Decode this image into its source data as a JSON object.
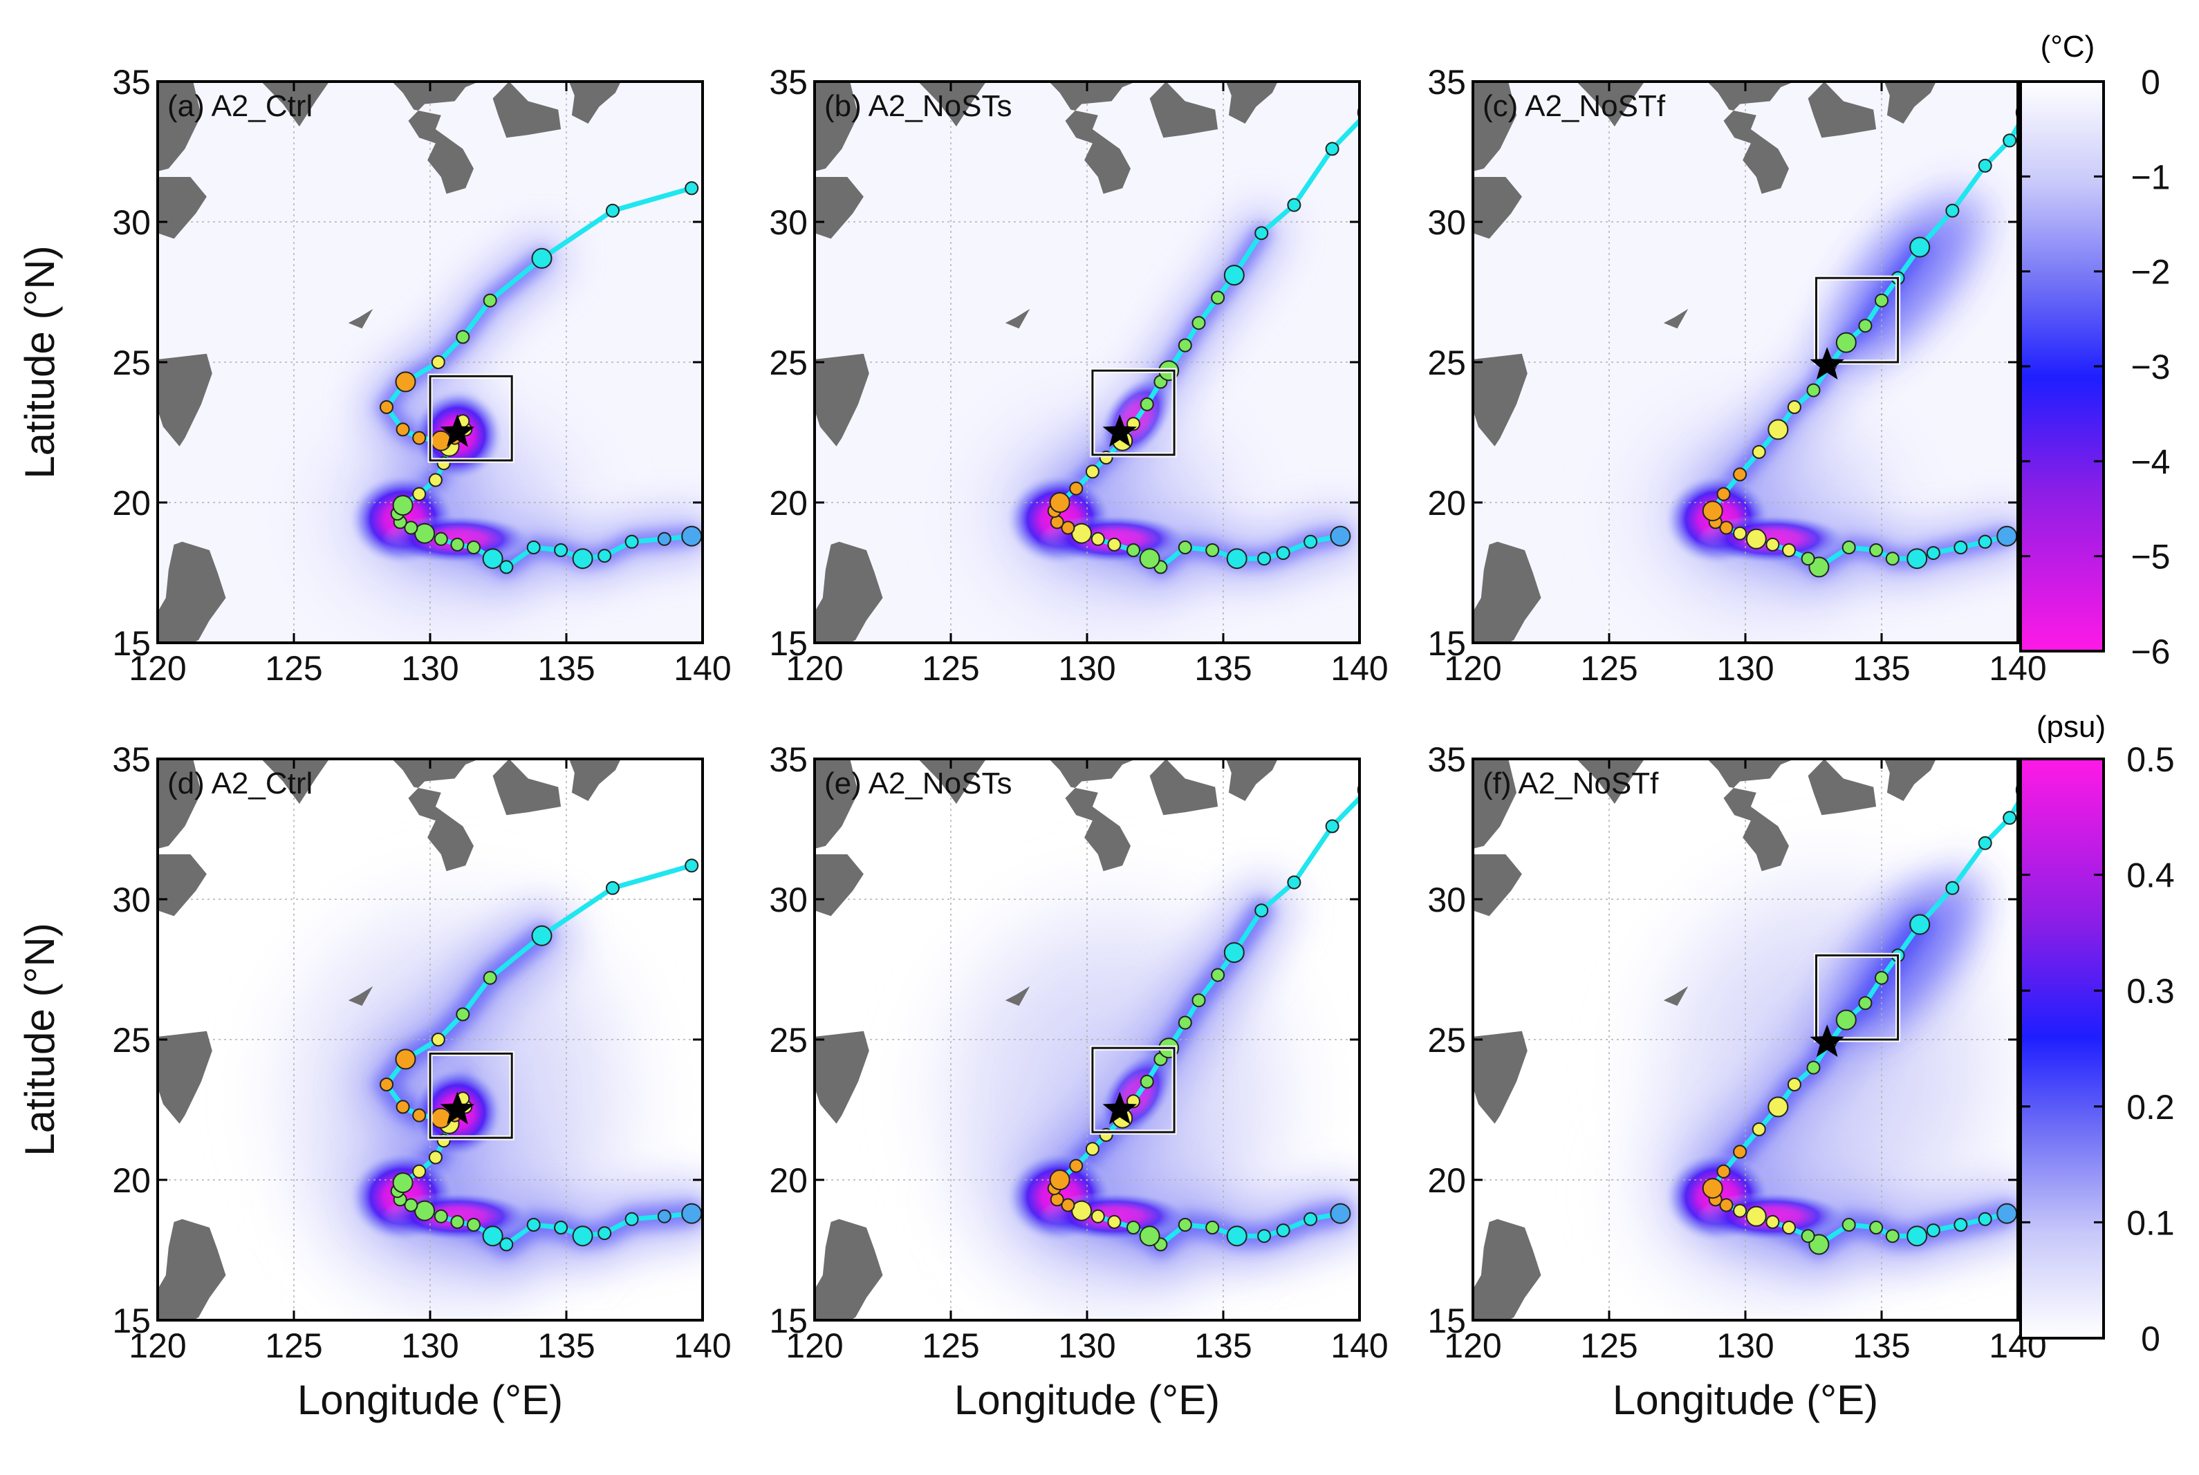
{
  "figure": {
    "xlabel": "Longitude (°E)",
    "ylabel": "Latitude (°N)",
    "xticks": [
      "120",
      "125",
      "130",
      "135",
      "140"
    ],
    "yticks": [
      "15",
      "20",
      "25",
      "30",
      "35"
    ],
    "xlim": [
      120,
      140
    ],
    "ylim": [
      15,
      35
    ],
    "grid": true
  },
  "colorbars": [
    {
      "unit": "(°C)",
      "ticks": [
        "0",
        "−1",
        "−2",
        "−3",
        "−4",
        "−5",
        "−6"
      ],
      "range": [
        0,
        -6
      ],
      "colors": [
        "#ffffff",
        "#c8c8fa",
        "#6f6ff6",
        "#1e1eff",
        "#8c1ee6",
        "#ff19e6"
      ]
    },
    {
      "unit": "(psu)",
      "ticks": [
        "0.5",
        "0.4",
        "0.3",
        "0.2",
        "0.1",
        "0"
      ],
      "range": [
        0.5,
        0
      ],
      "colors": [
        "#ff19e6",
        "#8c1ee6",
        "#1e1eff",
        "#6f6ff6",
        "#c8c8fa",
        "#ffffff"
      ]
    }
  ],
  "panels": [
    {
      "label": "(a) A2_Ctrl",
      "variable": "SST anomaly",
      "track": "ctrl"
    },
    {
      "label": "(b) A2_NoSTs",
      "variable": "SST anomaly",
      "track": "nosts"
    },
    {
      "label": "(c) A2_NoSTf",
      "variable": "SST anomaly",
      "track": "nostf"
    },
    {
      "label": "(d) A2_Ctrl",
      "variable": "SSS anomaly",
      "track": "ctrl"
    },
    {
      "label": "(e) A2_NoSTs",
      "variable": "SSS anomaly",
      "track": "nosts"
    },
    {
      "label": "(f) A2_NoSTf",
      "variable": "SSS anomaly",
      "track": "nostf"
    }
  ],
  "chart_data": {
    "type": "scatter",
    "xlim": [
      120,
      140
    ],
    "ylim": [
      15,
      35
    ],
    "tracks": {
      "ctrl": [
        [
          139.6,
          18.8
        ],
        [
          138.6,
          18.7
        ],
        [
          137.4,
          18.6
        ],
        [
          136.4,
          18.1
        ],
        [
          135.6,
          18.0
        ],
        [
          134.8,
          18.3
        ],
        [
          133.8,
          18.4
        ],
        [
          132.8,
          17.7
        ],
        [
          132.3,
          18.0
        ],
        [
          131.6,
          18.4
        ],
        [
          131.0,
          18.5
        ],
        [
          130.4,
          18.7
        ],
        [
          129.8,
          18.9
        ],
        [
          129.3,
          19.1
        ],
        [
          128.9,
          19.3
        ],
        [
          128.8,
          19.6
        ],
        [
          129.0,
          19.9
        ],
        [
          129.6,
          20.3
        ],
        [
          130.2,
          20.8
        ],
        [
          130.5,
          21.4
        ],
        [
          130.7,
          22.0
        ],
        [
          131.3,
          22.6
        ],
        [
          131.2,
          22.9
        ],
        [
          130.9,
          22.3
        ],
        [
          130.4,
          22.2
        ],
        [
          129.6,
          22.3
        ],
        [
          129.0,
          22.6
        ],
        [
          128.4,
          23.4
        ],
        [
          129.1,
          24.3
        ],
        [
          130.3,
          25.0
        ],
        [
          131.2,
          25.9
        ],
        [
          132.2,
          27.2
        ],
        [
          134.1,
          28.7
        ],
        [
          136.7,
          30.4
        ],
        [
          139.6,
          31.2
        ]
      ],
      "nosts": [
        [
          139.3,
          18.8
        ],
        [
          138.2,
          18.6
        ],
        [
          137.2,
          18.2
        ],
        [
          136.5,
          18.0
        ],
        [
          135.5,
          18.0
        ],
        [
          134.6,
          18.3
        ],
        [
          133.6,
          18.4
        ],
        [
          132.7,
          17.7
        ],
        [
          132.3,
          18.0
        ],
        [
          131.7,
          18.3
        ],
        [
          131.0,
          18.5
        ],
        [
          130.4,
          18.7
        ],
        [
          129.8,
          18.9
        ],
        [
          129.3,
          19.1
        ],
        [
          128.9,
          19.3
        ],
        [
          128.8,
          19.7
        ],
        [
          129.0,
          20.0
        ],
        [
          129.6,
          20.5
        ],
        [
          130.2,
          21.1
        ],
        [
          130.7,
          21.6
        ],
        [
          131.3,
          22.2
        ],
        [
          131.7,
          22.8
        ],
        [
          132.2,
          23.5
        ],
        [
          132.7,
          24.3
        ],
        [
          133.0,
          24.7
        ],
        [
          133.6,
          25.6
        ],
        [
          134.1,
          26.4
        ],
        [
          134.8,
          27.3
        ],
        [
          135.4,
          28.1
        ],
        [
          136.4,
          29.6
        ],
        [
          137.6,
          30.6
        ],
        [
          139.0,
          32.6
        ],
        [
          140.3,
          33.9
        ]
      ],
      "nostf": [
        [
          139.6,
          18.8
        ],
        [
          138.8,
          18.6
        ],
        [
          137.9,
          18.4
        ],
        [
          136.9,
          18.2
        ],
        [
          136.3,
          18.0
        ],
        [
          135.4,
          18.0
        ],
        [
          134.8,
          18.3
        ],
        [
          133.8,
          18.4
        ],
        [
          132.7,
          17.7
        ],
        [
          132.3,
          18.0
        ],
        [
          131.6,
          18.3
        ],
        [
          131.0,
          18.5
        ],
        [
          130.4,
          18.7
        ],
        [
          129.8,
          18.9
        ],
        [
          129.3,
          19.1
        ],
        [
          128.9,
          19.3
        ],
        [
          128.8,
          19.7
        ],
        [
          129.2,
          20.3
        ],
        [
          129.8,
          21.0
        ],
        [
          130.5,
          21.8
        ],
        [
          131.2,
          22.6
        ],
        [
          131.8,
          23.4
        ],
        [
          132.5,
          24.0
        ],
        [
          133.1,
          24.9
        ],
        [
          133.7,
          25.7
        ],
        [
          134.4,
          26.3
        ],
        [
          135.0,
          27.2
        ],
        [
          135.6,
          28.0
        ],
        [
          136.4,
          29.1
        ],
        [
          137.6,
          30.4
        ],
        [
          138.8,
          32.0
        ],
        [
          139.7,
          32.9
        ],
        [
          140.3,
          33.9
        ]
      ]
    },
    "stars": {
      "ctrl": [
        131.0,
        22.5
      ],
      "nosts": [
        131.2,
        22.5
      ],
      "nostf": [
        133.0,
        24.9
      ]
    },
    "boxes": {
      "ctrl": {
        "lon": [
          130.0,
          133.0
        ],
        "lat": [
          21.5,
          24.5
        ]
      },
      "nosts": {
        "lon": [
          130.2,
          133.2
        ],
        "lat": [
          21.7,
          24.7
        ]
      },
      "nostf": {
        "lon": [
          132.6,
          135.6
        ],
        "lat": [
          25.0,
          28.0
        ]
      }
    },
    "sst_color_range": [
      0,
      -6
    ],
    "sss_color_range": [
      0,
      0.5
    ]
  }
}
